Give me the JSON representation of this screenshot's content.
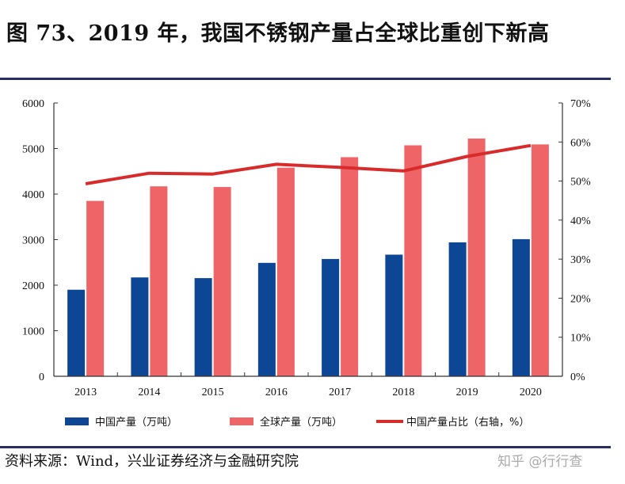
{
  "title": "图 73、2019 年，我国不锈钢产量占全球比重创下新高",
  "source": "资料来源：Wind，兴业证券经济与金融研究院",
  "watermark_badge": "知乎 @行行查",
  "colors": {
    "china": "#0e4696",
    "global": "#ef6467",
    "share": "#d82b2b",
    "rule": "#2b2e66"
  },
  "chart_data": {
    "type": "bar",
    "categories": [
      "2013",
      "2014",
      "2015",
      "2016",
      "2017",
      "2018",
      "2019",
      "2020"
    ],
    "series": [
      {
        "name": "中国产量（万吨）",
        "type": "bar",
        "axis": "left",
        "values": [
          1900,
          2170,
          2155,
          2490,
          2575,
          2670,
          2940,
          3010
        ]
      },
      {
        "name": "全球产量（万吨）",
        "type": "bar",
        "axis": "left",
        "values": [
          3850,
          4170,
          4155,
          4580,
          4810,
          5070,
          5220,
          5090
        ]
      },
      {
        "name": "中国产量占比（右轴，%）",
        "type": "line",
        "axis": "right",
        "values": [
          49.3,
          52.0,
          51.8,
          54.3,
          53.5,
          52.6,
          56.3,
          59.1
        ]
      }
    ],
    "y_left": {
      "min": 0,
      "max": 6000,
      "ticks": [
        0,
        1000,
        2000,
        3000,
        4000,
        5000,
        6000
      ],
      "tick_labels": [
        "0",
        "1000",
        "2000",
        "3000",
        "4000",
        "5000",
        "6000"
      ]
    },
    "y_right": {
      "min": 0,
      "max": 70,
      "ticks": [
        0,
        10,
        20,
        30,
        40,
        50,
        60,
        70
      ],
      "tick_labels": [
        "0%",
        "10%",
        "20%",
        "30%",
        "40%",
        "50%",
        "60%",
        "70%"
      ]
    },
    "grid": false,
    "legend_position": "bottom"
  }
}
